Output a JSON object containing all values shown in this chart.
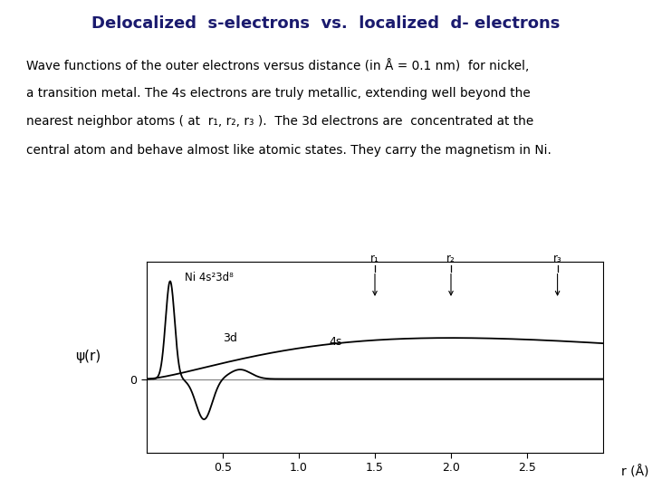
{
  "title": "Delocalized  s-electrons  vs.  localized  d- electrons",
  "title_color": "#1a1a6e",
  "title_fontsize": 13,
  "body_text_line1": "Wave functions of the outer electrons versus distance (in Å = 0.1 nm)  for nickel,",
  "body_text_line2": "a transition metal. The 4s electrons are truly metallic, extending well beyond the",
  "body_text_line3": "nearest neighbor atoms ( at  r₁, r₂, r₃ ).  The 3d electrons are  concentrated at the",
  "body_text_line4": "central atom and behave almost like atomic states. They carry the magnetism in Ni.",
  "body_fontsize": 9.8,
  "ni_label": "Ni 4s²3d⁸",
  "label_3d": "3d",
  "label_4s": "4s",
  "ylabel": "ψ(r)",
  "xlabel": "r (Å)",
  "x_ticks": [
    0.5,
    1.0,
    1.5,
    2.0,
    2.5
  ],
  "r1": 1.5,
  "r2": 2.0,
  "r3": 2.7,
  "bg_color": "#ffffff",
  "plot_bg_color": "#ffffff",
  "curve_color": "#000000",
  "zero_line_color": "#888888",
  "box_color": "#000000"
}
